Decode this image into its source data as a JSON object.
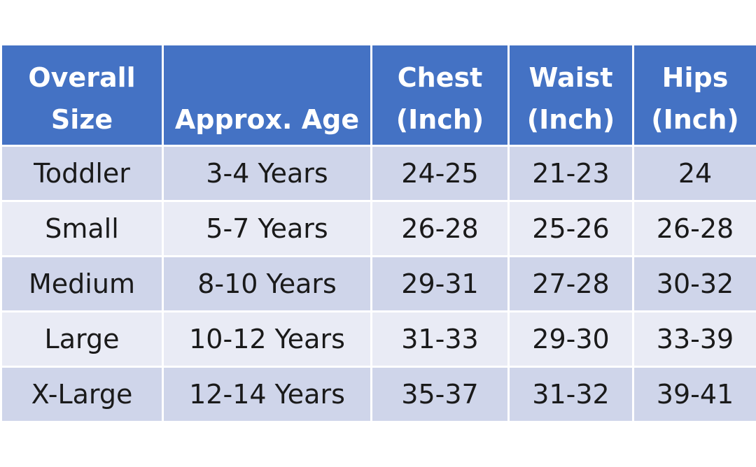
{
  "table": {
    "header": [
      [
        "Overall",
        "Size"
      ],
      [
        "Approx. Age"
      ],
      [
        "Chest",
        "(Inch)"
      ],
      [
        "Waist",
        "(Inch)"
      ],
      [
        "Hips",
        "(Inch)"
      ]
    ],
    "rows": [
      [
        "Toddler",
        "3-4 Years",
        "24-25",
        "21-23",
        "24"
      ],
      [
        "Small",
        "5-7 Years",
        "26-28",
        "25-26",
        "26-28"
      ],
      [
        "Medium",
        "8-10 Years",
        "29-31",
        "27-28",
        "30-32"
      ],
      [
        "Large",
        "10-12 Years",
        "31-33",
        "29-30",
        "33-39"
      ],
      [
        "X-Large",
        "12-14 Years",
        "35-37",
        "31-32",
        "39-41"
      ]
    ]
  }
}
